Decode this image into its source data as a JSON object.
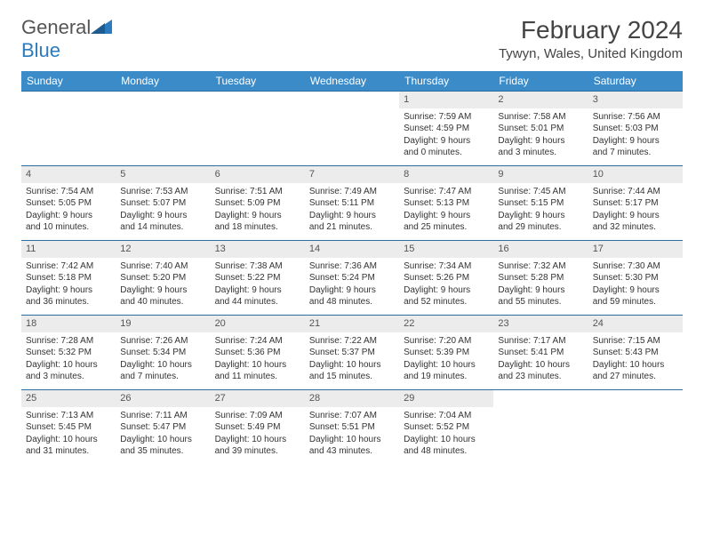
{
  "header": {
    "logo_general": "General",
    "logo_blue": "Blue",
    "month_title": "February 2024",
    "location": "Tywyn, Wales, United Kingdom"
  },
  "colors": {
    "header_bg": "#3b8bc9",
    "row_border": "#2a6da3",
    "daynum_bg": "#ececec",
    "logo_blue": "#2b7bbf"
  },
  "weekdays": [
    "Sunday",
    "Monday",
    "Tuesday",
    "Wednesday",
    "Thursday",
    "Friday",
    "Saturday"
  ],
  "first_weekday_index": 4,
  "days": [
    {
      "n": "1",
      "sunrise": "Sunrise: 7:59 AM",
      "sunset": "Sunset: 4:59 PM",
      "day1": "Daylight: 9 hours",
      "day2": "and 0 minutes."
    },
    {
      "n": "2",
      "sunrise": "Sunrise: 7:58 AM",
      "sunset": "Sunset: 5:01 PM",
      "day1": "Daylight: 9 hours",
      "day2": "and 3 minutes."
    },
    {
      "n": "3",
      "sunrise": "Sunrise: 7:56 AM",
      "sunset": "Sunset: 5:03 PM",
      "day1": "Daylight: 9 hours",
      "day2": "and 7 minutes."
    },
    {
      "n": "4",
      "sunrise": "Sunrise: 7:54 AM",
      "sunset": "Sunset: 5:05 PM",
      "day1": "Daylight: 9 hours",
      "day2": "and 10 minutes."
    },
    {
      "n": "5",
      "sunrise": "Sunrise: 7:53 AM",
      "sunset": "Sunset: 5:07 PM",
      "day1": "Daylight: 9 hours",
      "day2": "and 14 minutes."
    },
    {
      "n": "6",
      "sunrise": "Sunrise: 7:51 AM",
      "sunset": "Sunset: 5:09 PM",
      "day1": "Daylight: 9 hours",
      "day2": "and 18 minutes."
    },
    {
      "n": "7",
      "sunrise": "Sunrise: 7:49 AM",
      "sunset": "Sunset: 5:11 PM",
      "day1": "Daylight: 9 hours",
      "day2": "and 21 minutes."
    },
    {
      "n": "8",
      "sunrise": "Sunrise: 7:47 AM",
      "sunset": "Sunset: 5:13 PM",
      "day1": "Daylight: 9 hours",
      "day2": "and 25 minutes."
    },
    {
      "n": "9",
      "sunrise": "Sunrise: 7:45 AM",
      "sunset": "Sunset: 5:15 PM",
      "day1": "Daylight: 9 hours",
      "day2": "and 29 minutes."
    },
    {
      "n": "10",
      "sunrise": "Sunrise: 7:44 AM",
      "sunset": "Sunset: 5:17 PM",
      "day1": "Daylight: 9 hours",
      "day2": "and 32 minutes."
    },
    {
      "n": "11",
      "sunrise": "Sunrise: 7:42 AM",
      "sunset": "Sunset: 5:18 PM",
      "day1": "Daylight: 9 hours",
      "day2": "and 36 minutes."
    },
    {
      "n": "12",
      "sunrise": "Sunrise: 7:40 AM",
      "sunset": "Sunset: 5:20 PM",
      "day1": "Daylight: 9 hours",
      "day2": "and 40 minutes."
    },
    {
      "n": "13",
      "sunrise": "Sunrise: 7:38 AM",
      "sunset": "Sunset: 5:22 PM",
      "day1": "Daylight: 9 hours",
      "day2": "and 44 minutes."
    },
    {
      "n": "14",
      "sunrise": "Sunrise: 7:36 AM",
      "sunset": "Sunset: 5:24 PM",
      "day1": "Daylight: 9 hours",
      "day2": "and 48 minutes."
    },
    {
      "n": "15",
      "sunrise": "Sunrise: 7:34 AM",
      "sunset": "Sunset: 5:26 PM",
      "day1": "Daylight: 9 hours",
      "day2": "and 52 minutes."
    },
    {
      "n": "16",
      "sunrise": "Sunrise: 7:32 AM",
      "sunset": "Sunset: 5:28 PM",
      "day1": "Daylight: 9 hours",
      "day2": "and 55 minutes."
    },
    {
      "n": "17",
      "sunrise": "Sunrise: 7:30 AM",
      "sunset": "Sunset: 5:30 PM",
      "day1": "Daylight: 9 hours",
      "day2": "and 59 minutes."
    },
    {
      "n": "18",
      "sunrise": "Sunrise: 7:28 AM",
      "sunset": "Sunset: 5:32 PM",
      "day1": "Daylight: 10 hours",
      "day2": "and 3 minutes."
    },
    {
      "n": "19",
      "sunrise": "Sunrise: 7:26 AM",
      "sunset": "Sunset: 5:34 PM",
      "day1": "Daylight: 10 hours",
      "day2": "and 7 minutes."
    },
    {
      "n": "20",
      "sunrise": "Sunrise: 7:24 AM",
      "sunset": "Sunset: 5:36 PM",
      "day1": "Daylight: 10 hours",
      "day2": "and 11 minutes."
    },
    {
      "n": "21",
      "sunrise": "Sunrise: 7:22 AM",
      "sunset": "Sunset: 5:37 PM",
      "day1": "Daylight: 10 hours",
      "day2": "and 15 minutes."
    },
    {
      "n": "22",
      "sunrise": "Sunrise: 7:20 AM",
      "sunset": "Sunset: 5:39 PM",
      "day1": "Daylight: 10 hours",
      "day2": "and 19 minutes."
    },
    {
      "n": "23",
      "sunrise": "Sunrise: 7:17 AM",
      "sunset": "Sunset: 5:41 PM",
      "day1": "Daylight: 10 hours",
      "day2": "and 23 minutes."
    },
    {
      "n": "24",
      "sunrise": "Sunrise: 7:15 AM",
      "sunset": "Sunset: 5:43 PM",
      "day1": "Daylight: 10 hours",
      "day2": "and 27 minutes."
    },
    {
      "n": "25",
      "sunrise": "Sunrise: 7:13 AM",
      "sunset": "Sunset: 5:45 PM",
      "day1": "Daylight: 10 hours",
      "day2": "and 31 minutes."
    },
    {
      "n": "26",
      "sunrise": "Sunrise: 7:11 AM",
      "sunset": "Sunset: 5:47 PM",
      "day1": "Daylight: 10 hours",
      "day2": "and 35 minutes."
    },
    {
      "n": "27",
      "sunrise": "Sunrise: 7:09 AM",
      "sunset": "Sunset: 5:49 PM",
      "day1": "Daylight: 10 hours",
      "day2": "and 39 minutes."
    },
    {
      "n": "28",
      "sunrise": "Sunrise: 7:07 AM",
      "sunset": "Sunset: 5:51 PM",
      "day1": "Daylight: 10 hours",
      "day2": "and 43 minutes."
    },
    {
      "n": "29",
      "sunrise": "Sunrise: 7:04 AM",
      "sunset": "Sunset: 5:52 PM",
      "day1": "Daylight: 10 hours",
      "day2": "and 48 minutes."
    }
  ]
}
